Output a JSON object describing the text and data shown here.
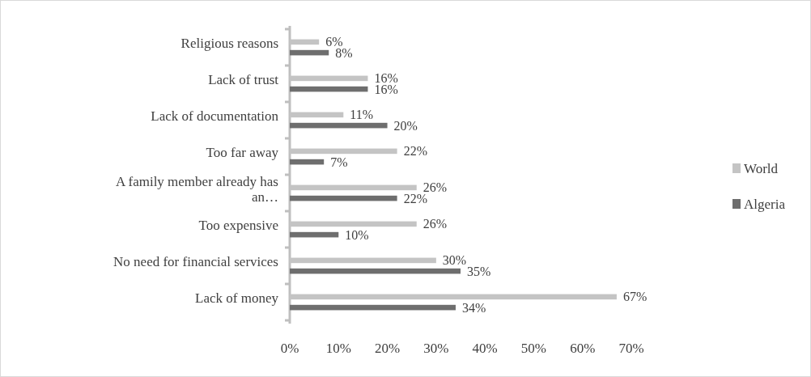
{
  "chart_data": {
    "type": "bar",
    "orientation": "horizontal",
    "categories": [
      "Religious reasons",
      "Lack of trust",
      "Lack of documentation",
      "Too far away",
      "A family member already has an…",
      "Too expensive",
      "No need for financial services",
      "Lack of money"
    ],
    "series": [
      {
        "name": "World",
        "color": "#c4c4c4",
        "values": [
          6,
          16,
          11,
          22,
          26,
          26,
          30,
          67
        ],
        "value_labels": [
          "6%",
          "16%",
          "11%",
          "22%",
          "26%",
          "26%",
          "30%",
          "67%"
        ]
      },
      {
        "name": "Algeria",
        "color": "#6e6e6e",
        "values": [
          8,
          16,
          20,
          7,
          22,
          10,
          35,
          34
        ],
        "value_labels": [
          "8%",
          "16%",
          "20%",
          "7%",
          "22%",
          "10%",
          "35%",
          "34%"
        ]
      }
    ],
    "xlim": [
      0,
      70
    ],
    "xticks": [
      {
        "value": 0,
        "label": "0%"
      },
      {
        "value": 10,
        "label": "10%"
      },
      {
        "value": 20,
        "label": "20%"
      },
      {
        "value": 30,
        "label": "30%"
      },
      {
        "value": 40,
        "label": "40%"
      },
      {
        "value": 50,
        "label": "50%"
      },
      {
        "value": 60,
        "label": "60%"
      },
      {
        "value": 70,
        "label": "70%"
      }
    ],
    "legend": "right",
    "grid": false
  }
}
